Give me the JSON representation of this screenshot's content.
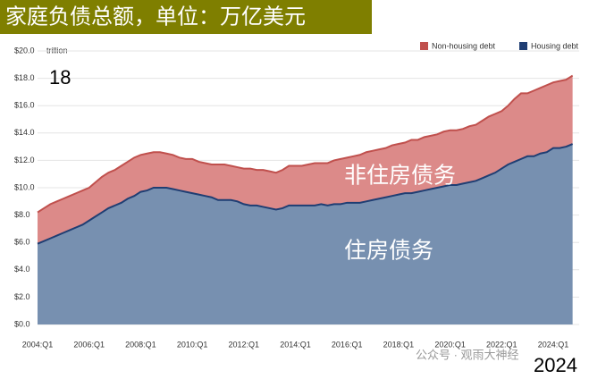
{
  "chart_data": {
    "type": "stacked_area",
    "title": "家庭负债总额，单位：万亿美元",
    "y_unit": "trillion",
    "annotations": [
      "18",
      "非住房债务",
      "住房债务",
      "2024",
      "公众号 · 观雨大神经"
    ],
    "categories": [
      "2004:Q1",
      null,
      null,
      null,
      null,
      null,
      null,
      null,
      "2006:Q1",
      null,
      null,
      null,
      null,
      null,
      null,
      null,
      "2008:Q1",
      null,
      null,
      null,
      null,
      null,
      null,
      null,
      "2010:Q1",
      null,
      null,
      null,
      null,
      null,
      null,
      null,
      "2012:Q1",
      null,
      null,
      null,
      null,
      null,
      null,
      null,
      "2014:Q1",
      null,
      null,
      null,
      null,
      null,
      null,
      null,
      "2016:Q1",
      null,
      null,
      null,
      null,
      null,
      null,
      null,
      "2018:Q1",
      null,
      null,
      null,
      null,
      null,
      null,
      null,
      "2020:Q1",
      null,
      null,
      null,
      null,
      null,
      null,
      null,
      "2022:Q1",
      null,
      null,
      null,
      null,
      null,
      null,
      null,
      "2024:Q1",
      null,
      null,
      null
    ],
    "series": [
      {
        "name": "Housing debt",
        "color": "#1f3e73",
        "fill": "#7790b0",
        "values": [
          5.9,
          6.1,
          6.3,
          6.5,
          6.7,
          6.9,
          7.1,
          7.3,
          7.6,
          7.9,
          8.2,
          8.5,
          8.7,
          8.9,
          9.2,
          9.4,
          9.7,
          9.8,
          10.0,
          10.0,
          10.0,
          9.9,
          9.8,
          9.7,
          9.6,
          9.5,
          9.4,
          9.3,
          9.1,
          9.1,
          9.1,
          9.0,
          8.8,
          8.7,
          8.7,
          8.6,
          8.5,
          8.4,
          8.5,
          8.7,
          8.7,
          8.7,
          8.7,
          8.7,
          8.8,
          8.7,
          8.8,
          8.8,
          8.9,
          8.9,
          8.9,
          9.0,
          9.1,
          9.2,
          9.3,
          9.4,
          9.5,
          9.6,
          9.6,
          9.7,
          9.8,
          9.9,
          10.0,
          10.1,
          10.2,
          10.2,
          10.3,
          10.4,
          10.5,
          10.7,
          10.9,
          11.1,
          11.4,
          11.7,
          11.9,
          12.1,
          12.3,
          12.3,
          12.5,
          12.6,
          12.9,
          12.9,
          13.0,
          13.2
        ]
      },
      {
        "name": "Non-housing debt",
        "color": "#c0504d",
        "fill": "#dc8a89",
        "values": [
          2.3,
          2.4,
          2.5,
          2.5,
          2.5,
          2.5,
          2.5,
          2.5,
          2.4,
          2.5,
          2.6,
          2.6,
          2.6,
          2.7,
          2.7,
          2.8,
          2.7,
          2.7,
          2.6,
          2.6,
          2.5,
          2.5,
          2.4,
          2.4,
          2.5,
          2.4,
          2.4,
          2.4,
          2.6,
          2.6,
          2.5,
          2.5,
          2.6,
          2.7,
          2.6,
          2.7,
          2.7,
          2.7,
          2.8,
          2.9,
          2.9,
          2.9,
          3.0,
          3.1,
          3.0,
          3.1,
          3.2,
          3.3,
          3.3,
          3.4,
          3.5,
          3.6,
          3.6,
          3.6,
          3.6,
          3.7,
          3.7,
          3.7,
          3.9,
          3.8,
          3.9,
          3.9,
          3.9,
          4.0,
          4.0,
          4.0,
          4.0,
          4.1,
          4.1,
          4.2,
          4.3,
          4.3,
          4.2,
          4.3,
          4.6,
          4.8,
          4.6,
          4.8,
          4.8,
          4.9,
          4.8,
          4.9,
          4.9,
          5.0
        ]
      }
    ],
    "ylim": [
      0,
      20
    ],
    "yticks": [
      {
        "value": 0,
        "label": "$0.0"
      },
      {
        "value": 2,
        "label": "$2.0"
      },
      {
        "value": 4,
        "label": "$4.0"
      },
      {
        "value": 6,
        "label": "$6.0"
      },
      {
        "value": 8,
        "label": "$8.0"
      },
      {
        "value": 10,
        "label": "$10.0"
      },
      {
        "value": 12,
        "label": "$12.0"
      },
      {
        "value": 14,
        "label": "$14.0"
      },
      {
        "value": 16,
        "label": "$16.0"
      },
      {
        "value": 18,
        "label": "$18.0"
      },
      {
        "value": 20,
        "label": "$20.0"
      }
    ],
    "grid": true,
    "legend": "top-right"
  }
}
